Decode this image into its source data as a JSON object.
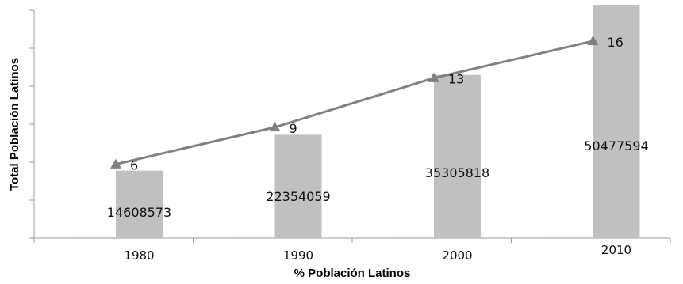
{
  "chart_data": {
    "type": "bar",
    "categories": [
      "1980",
      "1990",
      "2000",
      "2010"
    ],
    "series": [
      {
        "type": "bar",
        "values": [
          14608573,
          22354059,
          35305818,
          50477594
        ],
        "color": "#c0c0c0"
      },
      {
        "type": "line",
        "values": [
          6,
          9,
          13,
          16
        ],
        "color": "#808080",
        "marker": "triangle"
      }
    ],
    "bar_value_labels": [
      "14608573",
      "22354059",
      "35305818",
      "50477594"
    ],
    "line_value_labels": [
      "6",
      "9",
      "13",
      "16"
    ],
    "xlabel": "% Población Latinos",
    "ylabel": "Total Población Latinos",
    "y_tick_count": 6,
    "grid": false
  }
}
